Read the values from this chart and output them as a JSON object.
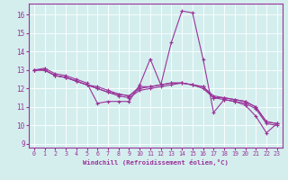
{
  "title": "",
  "xlabel": "Windchill (Refroidissement éolien,°C)",
  "ylabel": "",
  "background_color": "#d4eeee",
  "grid_color": "#ffffff",
  "line_color": "#993399",
  "xlim": [
    -0.5,
    23.5
  ],
  "ylim": [
    8.8,
    16.6
  ],
  "yticks": [
    9,
    10,
    11,
    12,
    13,
    14,
    15,
    16
  ],
  "xticks": [
    0,
    1,
    2,
    3,
    4,
    5,
    6,
    7,
    8,
    9,
    10,
    11,
    12,
    13,
    14,
    15,
    16,
    17,
    18,
    19,
    20,
    21,
    22,
    23
  ],
  "lines": [
    [
      13.0,
      13.1,
      12.8,
      12.7,
      12.5,
      12.3,
      11.2,
      11.3,
      11.3,
      11.3,
      12.2,
      13.6,
      12.2,
      14.5,
      16.2,
      16.1,
      13.6,
      10.7,
      11.4,
      11.3,
      11.1,
      10.5,
      9.6,
      10.1
    ],
    [
      13.0,
      13.0,
      12.7,
      12.6,
      12.4,
      12.2,
      12.1,
      11.9,
      11.7,
      11.6,
      12.1,
      12.1,
      12.2,
      12.3,
      12.3,
      12.2,
      12.1,
      11.6,
      11.5,
      11.4,
      11.3,
      11.0,
      10.2,
      10.1
    ],
    [
      13.0,
      13.0,
      12.7,
      12.6,
      12.4,
      12.2,
      12.0,
      11.8,
      11.6,
      11.5,
      11.9,
      12.0,
      12.1,
      12.2,
      12.3,
      12.2,
      12.0,
      11.5,
      11.4,
      11.3,
      11.2,
      10.9,
      10.1,
      10.0
    ],
    [
      13.0,
      13.0,
      12.7,
      12.6,
      12.4,
      12.2,
      12.0,
      11.8,
      11.7,
      11.6,
      12.0,
      12.1,
      12.2,
      12.3,
      12.3,
      12.2,
      12.1,
      11.5,
      11.5,
      11.4,
      11.3,
      11.0,
      10.2,
      10.1
    ]
  ]
}
